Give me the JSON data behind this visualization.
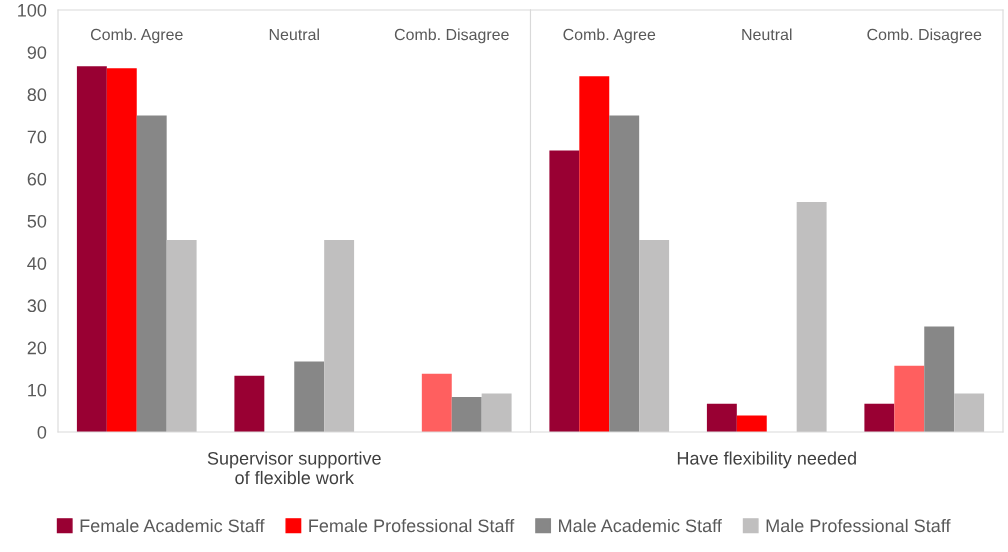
{
  "chart_data": [
    {
      "type": "bar",
      "xlabel": "Supervisor supportive\nof flexible work",
      "categories": [
        "Comb. Agree",
        "Neutral",
        "Comb. Disagree"
      ],
      "ylim": [
        0,
        100
      ],
      "yticks": [
        0,
        10,
        20,
        30,
        40,
        50,
        60,
        70,
        80,
        90,
        100
      ],
      "legend": "bottom",
      "grid": false,
      "series": [
        {
          "name": "Female Academic Staff",
          "color": "#990033",
          "values": [
            86.7,
            13.3,
            0
          ]
        },
        {
          "name": "Female Professional Staff",
          "color": "#ff0000",
          "colors": [
            "#ff0000",
            "#ff0000",
            "#ff5f5f"
          ],
          "values": [
            86.2,
            0,
            13.8
          ]
        },
        {
          "name": "Male Academic Staff",
          "color": "#878787",
          "values": [
            75,
            16.7,
            8.3
          ]
        },
        {
          "name": "Male Professional Staff",
          "color": "#c0bfbf",
          "values": [
            45.5,
            45.5,
            9.1
          ]
        }
      ]
    },
    {
      "type": "bar",
      "xlabel": "Have flexibility needed",
      "categories": [
        "Comb. Agree",
        "Neutral",
        "Comb. Disagree"
      ],
      "ylim": [
        0,
        100
      ],
      "yticks": [
        0,
        10,
        20,
        30,
        40,
        50,
        60,
        70,
        80,
        90,
        100
      ],
      "tick_labels": "x",
      "grid": false,
      "series": [
        {
          "color": "#990033",
          "values": [
            66.7,
            6.7,
            6.7
          ]
        },
        {
          "color": "#ff0000",
          "colors": [
            "#ff0000",
            "#ff0000",
            "#ff5f5f"
          ],
          "values": [
            84.3,
            3.9,
            15.7
          ]
        },
        {
          "color": "#878787",
          "values": [
            75,
            0,
            25
          ]
        },
        {
          "color": "#c0bfbf",
          "values": [
            45.5,
            54.5,
            9.1
          ]
        }
      ]
    }
  ]
}
